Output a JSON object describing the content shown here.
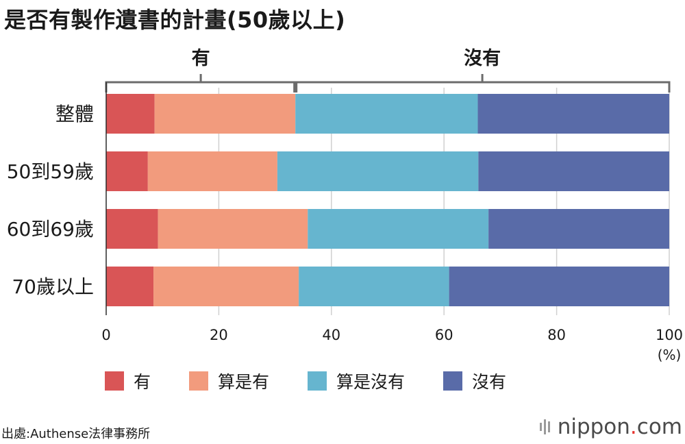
{
  "chart_data": {
    "type": "bar",
    "orientation": "horizontal",
    "stacked": true,
    "title": "是否有製作遺書的計畫(50歲以上)",
    "categories": [
      "整體",
      "50到59歲",
      "60到69歲",
      "70歲以上"
    ],
    "series": [
      {
        "name": "有",
        "color": "#d95556",
        "values": [
          8.6,
          7.4,
          9.2,
          8.4
        ]
      },
      {
        "name": "算是有",
        "color": "#f29b7d",
        "values": [
          25.0,
          23.0,
          26.6,
          25.8
        ]
      },
      {
        "name": "算是沒有",
        "color": "#66b5cf",
        "values": [
          32.4,
          35.7,
          32.1,
          26.7
        ]
      },
      {
        "name": "沒有",
        "color": "#596ba8",
        "values": [
          34.0,
          33.9,
          32.1,
          39.1
        ]
      }
    ],
    "xlim": [
      0,
      100
    ],
    "xticks": [
      0,
      20,
      40,
      60,
      80,
      100
    ],
    "xunit": "(%)",
    "grid": true,
    "bracket_split": 33.6,
    "bracket_labels": [
      "有",
      "沒有"
    ],
    "legend_position": "bottom"
  },
  "source": "出處:Authense法律事務所",
  "brand": {
    "name": "nippon",
    "dot": ".",
    "suffix": "com"
  }
}
